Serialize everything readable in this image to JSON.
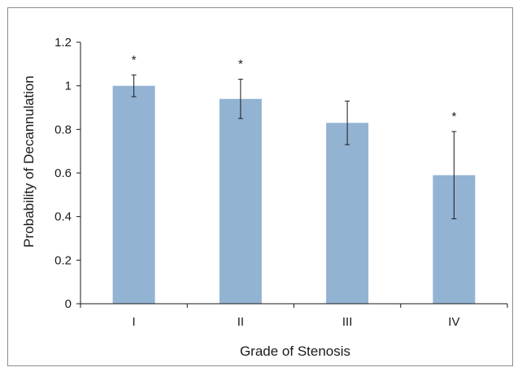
{
  "chart_data": {
    "type": "bar",
    "title": "",
    "xlabel": "Grade of Stenosis",
    "ylabel": "Probability of Decannulation",
    "categories": [
      "I",
      "II",
      "III",
      "IV"
    ],
    "values": [
      1.0,
      0.94,
      0.83,
      0.59
    ],
    "error_upper": [
      1.05,
      1.03,
      0.93,
      0.79
    ],
    "error_lower": [
      0.95,
      0.85,
      0.73,
      0.39
    ],
    "significance": [
      "*",
      "*",
      "",
      "*"
    ],
    "ylim": [
      0,
      1.2
    ],
    "yticks": [
      0,
      0.2,
      0.4,
      0.6,
      0.8,
      1,
      1.2
    ],
    "ytick_labels": [
      "0",
      "0.2",
      "0.4",
      "0.6",
      "0.8",
      "1",
      "1.2"
    ],
    "grid": false,
    "legend": "none",
    "bar_color": "#93b3d3",
    "error_color": "#1a1a1a",
    "axis_color": "#1a1a1a"
  }
}
